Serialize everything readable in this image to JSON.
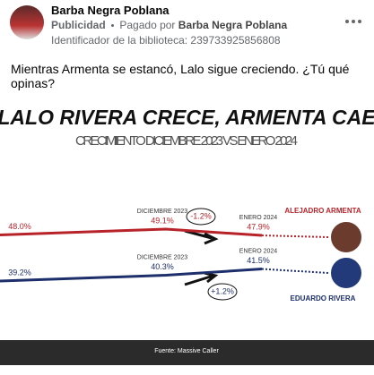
{
  "post": {
    "author": "Barba Negra Poblana",
    "sponsored": "Publicidad",
    "paid_by_label": "Pagado por",
    "library_id": "Identificador de la biblioteca: 239733925856808",
    "text": "Mientras Armenta se estancó, Lalo sigue creciendo. ¿Tú qué opinas?"
  },
  "chart_data": {
    "type": "line",
    "title": "LALO RIVERA CRECE, ARMENTA CAE",
    "subtitle": "CRECIMIENTO DICIEMBRE 2023 VS ENERO 2024",
    "categories": [
      null,
      "DICIEMBRE 2023",
      "ENERO 2024"
    ],
    "series": [
      {
        "name": "ALEJADRO ARMENTA",
        "color": "#b8232a",
        "values": [
          48.0,
          49.1,
          47.9
        ],
        "value_labels": [
          "48.0%",
          "49.1%",
          "47.9%"
        ]
      },
      {
        "name": "EDUARDO RIVERA",
        "color": "#1d2f6b",
        "values": [
          39.2,
          40.3,
          41.5
        ],
        "value_labels": [
          "39.2%",
          "40.3%",
          "41.5%"
        ]
      }
    ],
    "annotations": [
      "-1.2%",
      "+1.2%"
    ],
    "source": "Fuente: Massive Caller"
  }
}
